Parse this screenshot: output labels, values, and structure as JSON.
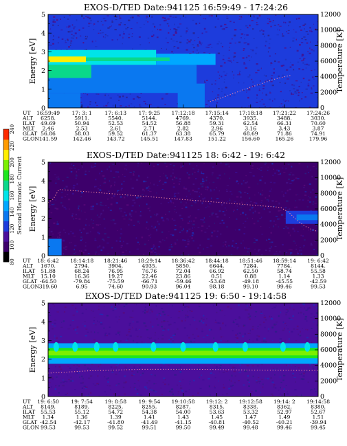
{
  "colorbar": {
    "label": "Second Harmonic Current",
    "ticks": [
      "80",
      "100",
      "120",
      "140",
      "160",
      "180",
      "200",
      "220",
      "240"
    ],
    "range": [
      80,
      240
    ],
    "colors": [
      "#000000",
      "#3d006b",
      "#4b0f9c",
      "#1d3cdc",
      "#0a78f0",
      "#00a8ff",
      "#00e4e8",
      "#0ad88a",
      "#1ee61e",
      "#7cf000",
      "#ffee00",
      "#ff9a00",
      "#ff2a00"
    ]
  },
  "chart_data": [
    {
      "type": "heatmap",
      "title": "EXOS-D/TED   Date:941125  16:59:49 - 17:24:26",
      "ylabel": "Energy [eV]",
      "y2label": "Temperature [K]",
      "ylim": [
        0,
        5
      ],
      "y2lim": [
        0,
        12000
      ],
      "yticks": [
        "0",
        "1",
        "2",
        "3",
        "4",
        "5"
      ],
      "y2ticks": [
        "0",
        "2000",
        "4000",
        "6000",
        "8000",
        "10000",
        "12000"
      ],
      "background_level": 122,
      "bands": [
        {
          "x_start": 0.0,
          "x_end": 0.4,
          "y_low": 2.3,
          "y_high": 3.1,
          "level": 165
        },
        {
          "x_start": 0.4,
          "x_end": 0.62,
          "y_low": 2.3,
          "y_high": 2.9,
          "level": 150
        },
        {
          "x_start": 0.0,
          "x_end": 0.14,
          "y_low": 2.45,
          "y_high": 2.75,
          "level": 205
        },
        {
          "x_start": 0.14,
          "x_end": 0.45,
          "y_low": 2.5,
          "y_high": 2.7,
          "level": 175
        },
        {
          "x_start": 0.0,
          "x_end": 0.55,
          "y_low": 0.8,
          "y_high": 2.3,
          "level": 138
        },
        {
          "x_start": 0.0,
          "x_end": 0.16,
          "y_low": 1.6,
          "y_high": 2.3,
          "level": 175
        },
        {
          "x_start": 0.0,
          "x_end": 0.12,
          "y_low": 0.0,
          "y_high": 0.8,
          "level": 135
        },
        {
          "x_start": 0.48,
          "x_end": 0.58,
          "y_low": 0.0,
          "y_high": 1.3,
          "level": 140
        }
      ],
      "temperature_trace": [
        [
          0.6,
          800
        ],
        [
          0.66,
          1500
        ],
        [
          0.72,
          2300
        ],
        [
          0.78,
          3000
        ],
        [
          0.84,
          3700
        ],
        [
          0.9,
          4200
        ]
      ],
      "table": {
        "labels": [
          "UT",
          "ALT",
          "ILAT",
          "MLT",
          "GLAT",
          "GLON"
        ],
        "columns": [
          [
            "16:59:49",
            "6258.",
            "49.69",
            "2.46",
            "56.86",
            "141.59"
          ],
          [
            "17: 3: 1",
            "5911.",
            "50.94",
            "2.53",
            "58.03",
            "142.46"
          ],
          [
            "17: 6:13",
            "5540.",
            "52.53",
            "2.61",
            "59.52",
            "143.72"
          ],
          [
            "17: 9:25",
            "5144.",
            "54.52",
            "2.71",
            "61.37",
            "145.51"
          ],
          [
            "17:12:18",
            "4769.",
            "56.88",
            "2.82",
            "63.38",
            "147.83"
          ],
          [
            "17:15:14",
            "4370.",
            "59.31",
            "2.96",
            "65.79",
            "151.22"
          ],
          [
            "17:18:18",
            "3935.",
            "62.54",
            "3.16",
            "68.69",
            "156.60"
          ],
          [
            "17:21:22",
            "3488.",
            "66.31",
            "3.43",
            "71.86",
            "165.26"
          ],
          [
            "17:24:26",
            "3030.",
            "70.60",
            "3.87",
            "74.91",
            "179.96"
          ]
        ]
      }
    },
    {
      "type": "heatmap",
      "title": "EXOS-D/TED   Date:941125  18: 6:42 - 19: 6:42",
      "ylabel": "Energy [eV]",
      "y2label": "Temperature [K]",
      "ylim": [
        0,
        5
      ],
      "y2lim": [
        0,
        12000
      ],
      "yticks": [
        "0",
        "1",
        "2",
        "3",
        "4",
        "5"
      ],
      "y2ticks": [
        "0",
        "2000",
        "4000",
        "6000",
        "8000",
        "10000",
        "12000"
      ],
      "background_level": 100,
      "bands": [
        {
          "x_start": 0.0,
          "x_end": 0.05,
          "y_low": 0.0,
          "y_high": 0.9,
          "level": 135
        },
        {
          "x_start": 0.88,
          "x_end": 1.0,
          "y_low": 1.7,
          "y_high": 2.4,
          "level": 118
        },
        {
          "x_start": 0.92,
          "x_end": 1.0,
          "y_low": 1.9,
          "y_high": 2.2,
          "level": 140
        }
      ],
      "temperature_trace": [
        [
          0.0,
          6800
        ],
        [
          0.02,
          7300
        ],
        [
          0.04,
          8500
        ],
        [
          0.86,
          6200
        ],
        [
          0.89,
          5600
        ],
        [
          0.92,
          4600
        ],
        [
          0.95,
          3800
        ],
        [
          0.98,
          3300
        ],
        [
          1.0,
          3100
        ]
      ],
      "table": {
        "labels": [
          "UT",
          "ALT",
          "ILAT",
          "MLT",
          "GLAT",
          "GLON"
        ],
        "columns": [
          [
            "18: 6:42",
            "1670.",
            "51.88",
            "15.10",
            "-64.50",
            "319.60"
          ],
          [
            "18:14:18",
            "2794.",
            "68.24",
            "16.36",
            "-79.84",
            "6.95"
          ],
          [
            "18:21:46",
            "3904.",
            "76.95",
            "19.27",
            "-75.59",
            "74.60"
          ],
          [
            "18:29:14",
            "4935.",
            "76.76",
            "22.46",
            "-66.71",
            "90.93"
          ],
          [
            "18:36:42",
            "5850.",
            "72.04",
            "23.86",
            "-59.46",
            "96.04"
          ],
          [
            "18:44:18",
            "6644.",
            "66.92",
            "0.51",
            "-53.68",
            "98.18"
          ],
          [
            "18:51:46",
            "7284.",
            "62.50",
            "0.88",
            "-49.18",
            "99.10"
          ],
          [
            "18:59:14",
            "7784.",
            "58.74",
            "1.14",
            "-45.55",
            "99.46"
          ],
          [
            "19: 6:42",
            "8144.",
            "55.58",
            "1.33",
            "-42.59",
            "99.53"
          ]
        ]
      }
    },
    {
      "type": "heatmap",
      "title": "EXOS-D/TED   Date:941125  19: 6:50 - 19:14:58",
      "ylabel": "Energy [eV]",
      "y2label": "Temperature [K]",
      "ylim": [
        0,
        5
      ],
      "y2lim": [
        0,
        12000
      ],
      "yticks": [
        "0",
        "1",
        "2",
        "3",
        "4",
        "5"
      ],
      "y2ticks": [
        "0",
        "2000",
        "4000",
        "6000",
        "8000",
        "10000",
        "12000"
      ],
      "background_level": 112,
      "bands": [
        {
          "x_start": 0.0,
          "x_end": 1.0,
          "y_low": 1.75,
          "y_high": 2.85,
          "level": 150
        },
        {
          "x_start": 0.0,
          "x_end": 1.0,
          "y_low": 2.05,
          "y_high": 2.6,
          "level": 180
        },
        {
          "x_start": 0.0,
          "x_end": 1.0,
          "y_low": 2.2,
          "y_high": 2.45,
          "level": 195
        }
      ],
      "peaks_x": [
        0.03,
        0.1,
        0.18,
        0.25,
        0.39,
        0.5,
        0.62,
        0.73,
        0.87,
        0.96
      ],
      "temperature_trace": [
        [
          0.0,
          3000
        ],
        [
          0.15,
          3300
        ],
        [
          0.35,
          3500
        ],
        [
          0.55,
          3500
        ],
        [
          0.75,
          3400
        ],
        [
          1.0,
          3350
        ]
      ],
      "table": {
        "labels": [
          "UT",
          "ALT",
          "ILAT",
          "MLT",
          "GLAT",
          "GLON"
        ],
        "columns": [
          [
            "19: 6:50",
            "8149.",
            "55.53",
            "1.34",
            "-42.54",
            "99.53"
          ],
          [
            "19: 7:54",
            "8189.",
            "55.12",
            "1.36",
            "-42.17",
            "99.53"
          ],
          [
            "19: 8:58",
            "8225.",
            "54.72",
            "1.39",
            "-41.80",
            "99.52"
          ],
          [
            "19: 9:54",
            "8255.",
            "54.38",
            "1.41",
            "-41.49",
            "99.51"
          ],
          [
            "19:10:58",
            "8287.",
            "54.00",
            "1.43",
            "-41.15",
            "99.50"
          ],
          [
            "19:12: 2",
            "8315.",
            "53.63",
            "1.45",
            "-40.81",
            "99.49"
          ],
          [
            "19:12:58",
            "8338.",
            "53.32",
            "1.47",
            "-40.52",
            "99.48"
          ],
          [
            "19:14: 2",
            "8362.",
            "52.97",
            "1.49",
            "-40.21",
            "99.46"
          ],
          [
            "19:14:58",
            "8380.",
            "52.67",
            "1.51",
            "-39.94",
            "99.45"
          ]
        ]
      }
    }
  ]
}
